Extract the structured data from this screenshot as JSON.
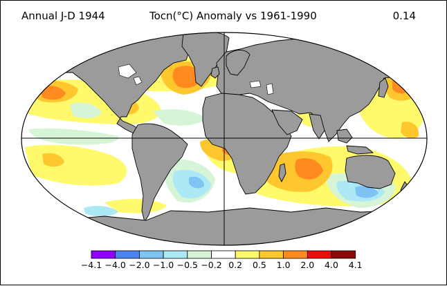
{
  "header": {
    "left": "Annual J-D 1944",
    "center": "Tocn(°C) Anomaly vs 1961-1990",
    "right": "0.14"
  },
  "colorbar": {
    "bins": [
      {
        "color": "#8f00ff"
      },
      {
        "color": "#4b84f0"
      },
      {
        "color": "#7fc3f2"
      },
      {
        "color": "#ade8f5"
      },
      {
        "color": "#d6f5d6"
      },
      {
        "color": "#ffffff"
      },
      {
        "color": "#fffa6b"
      },
      {
        "color": "#ffc72e"
      },
      {
        "color": "#ff8a1f"
      },
      {
        "color": "#f00a0a"
      },
      {
        "color": "#8a0a0a"
      }
    ],
    "labels": [
      "−4.1",
      "−4.0",
      "−2.0",
      "−1.0",
      "−0.5",
      "−0.2",
      "0.2",
      "0.5",
      "1.0",
      "2.0",
      "4.0",
      "4.1"
    ]
  },
  "colors": {
    "land": "#9b9b9b",
    "ocean_neutral": "#ffffff",
    "outline": "#000000"
  }
}
